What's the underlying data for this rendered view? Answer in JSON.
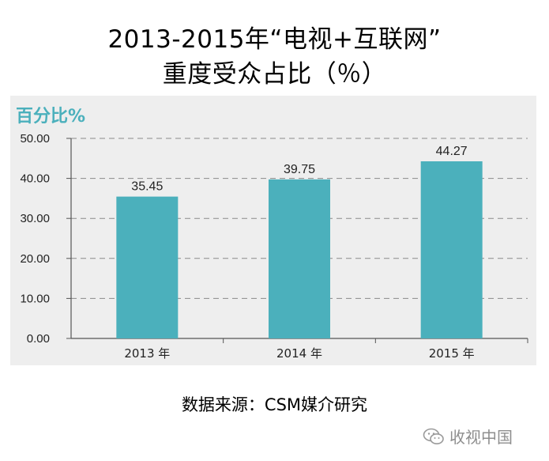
{
  "header": {
    "title_line1": "2013-2015年“电视+互联网”",
    "title_line2": "重度受众占比（％）"
  },
  "chart_data": {
    "type": "bar",
    "unit_label": "百分比%",
    "categories": [
      "2013 年",
      "2014 年",
      "2015 年"
    ],
    "values": [
      35.45,
      39.75,
      44.27
    ],
    "value_labels": [
      "35.45",
      "39.75",
      "44.27"
    ],
    "ylim": [
      0,
      50
    ],
    "yticks": [
      "0.00",
      "10.00",
      "20.00",
      "30.00",
      "40.00",
      "50.00"
    ],
    "grid": true,
    "bar_color": "#4bb0bc"
  },
  "footer": {
    "source": "数据来源：CSM媒介研究",
    "watermark": "收视中国",
    "watermark_icon": "wechat-icon"
  }
}
